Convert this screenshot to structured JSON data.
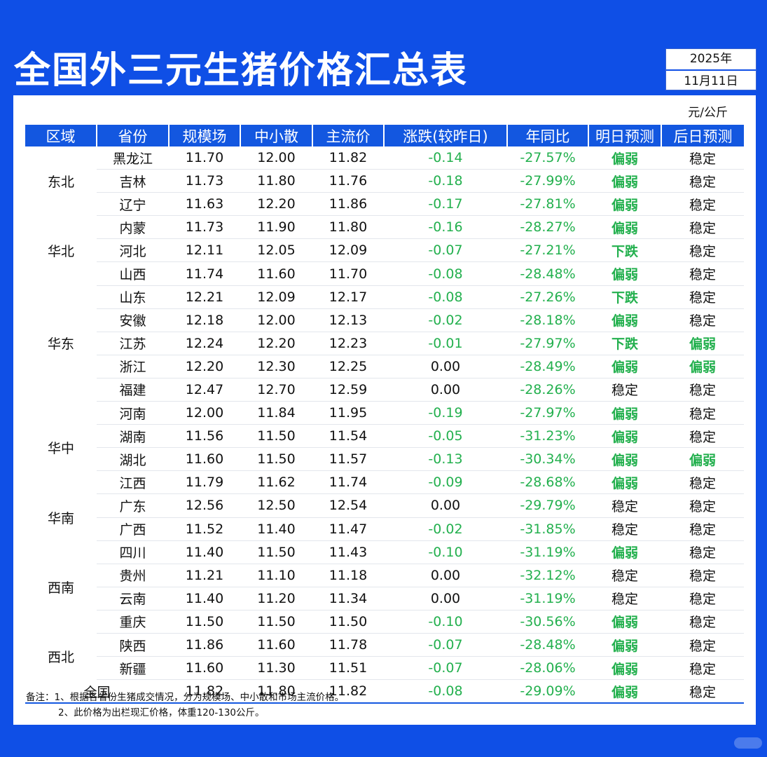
{
  "title": "全国外三元生猪价格汇总表",
  "date": {
    "year": "2025年",
    "day": "11月11日"
  },
  "unit": "元/公斤",
  "headers": [
    "区域",
    "省份",
    "规模场",
    "中小散",
    "主流价",
    "涨跌(较昨日)",
    "年同比",
    "明日预测",
    "后日预测"
  ],
  "regions": [
    {
      "name": "东北",
      "rows": 3
    },
    {
      "name": "华北",
      "rows": 3
    },
    {
      "name": "华东",
      "rows": 5
    },
    {
      "name": "华中",
      "rows": 4
    },
    {
      "name": "华南",
      "rows": 2
    },
    {
      "name": "西南",
      "rows": 4
    },
    {
      "name": "西北",
      "rows": 2
    }
  ],
  "rows": [
    [
      "黑龙江",
      "11.70",
      "12.00",
      "11.82",
      "-0.14",
      "-27.57%",
      "偏弱",
      "稳定"
    ],
    [
      "吉林",
      "11.73",
      "11.80",
      "11.76",
      "-0.18",
      "-27.99%",
      "偏弱",
      "稳定"
    ],
    [
      "辽宁",
      "11.63",
      "12.20",
      "11.86",
      "-0.17",
      "-27.81%",
      "偏弱",
      "稳定"
    ],
    [
      "内蒙",
      "11.73",
      "11.90",
      "11.80",
      "-0.16",
      "-28.27%",
      "偏弱",
      "稳定"
    ],
    [
      "河北",
      "12.11",
      "12.05",
      "12.09",
      "-0.07",
      "-27.21%",
      "下跌",
      "稳定"
    ],
    [
      "山西",
      "11.74",
      "11.60",
      "11.70",
      "-0.08",
      "-28.48%",
      "偏弱",
      "稳定"
    ],
    [
      "山东",
      "12.21",
      "12.09",
      "12.17",
      "-0.08",
      "-27.26%",
      "下跌",
      "稳定"
    ],
    [
      "安徽",
      "12.18",
      "12.00",
      "12.13",
      "-0.02",
      "-28.18%",
      "偏弱",
      "稳定"
    ],
    [
      "江苏",
      "12.24",
      "12.20",
      "12.23",
      "-0.01",
      "-27.97%",
      "下跌",
      "偏弱"
    ],
    [
      "浙江",
      "12.20",
      "12.30",
      "12.25",
      "0.00",
      "-28.49%",
      "偏弱",
      "偏弱"
    ],
    [
      "福建",
      "12.47",
      "12.70",
      "12.59",
      "0.00",
      "-28.26%",
      "稳定",
      "稳定"
    ],
    [
      "河南",
      "12.00",
      "11.84",
      "11.95",
      "-0.19",
      "-27.97%",
      "偏弱",
      "稳定"
    ],
    [
      "湖南",
      "11.56",
      "11.50",
      "11.54",
      "-0.05",
      "-31.23%",
      "偏弱",
      "稳定"
    ],
    [
      "湖北",
      "11.60",
      "11.50",
      "11.57",
      "-0.13",
      "-30.34%",
      "偏弱",
      "偏弱"
    ],
    [
      "江西",
      "11.79",
      "11.62",
      "11.74",
      "-0.09",
      "-28.68%",
      "偏弱",
      "稳定"
    ],
    [
      "广东",
      "12.56",
      "12.50",
      "12.54",
      "0.00",
      "-29.79%",
      "稳定",
      "稳定"
    ],
    [
      "广西",
      "11.52",
      "11.40",
      "11.47",
      "-0.02",
      "-31.85%",
      "稳定",
      "稳定"
    ],
    [
      "四川",
      "11.40",
      "11.50",
      "11.43",
      "-0.10",
      "-31.19%",
      "偏弱",
      "稳定"
    ],
    [
      "贵州",
      "11.21",
      "11.10",
      "11.18",
      "0.00",
      "-32.12%",
      "稳定",
      "稳定"
    ],
    [
      "云南",
      "11.40",
      "11.20",
      "11.34",
      "0.00",
      "-31.19%",
      "稳定",
      "稳定"
    ],
    [
      "重庆",
      "11.50",
      "11.50",
      "11.50",
      "-0.10",
      "-30.56%",
      "偏弱",
      "稳定"
    ],
    [
      "陕西",
      "11.86",
      "11.60",
      "11.78",
      "-0.07",
      "-28.48%",
      "偏弱",
      "稳定"
    ],
    [
      "新疆",
      "11.60",
      "11.30",
      "11.51",
      "-0.07",
      "-28.06%",
      "偏弱",
      "稳定"
    ]
  ],
  "total": [
    "全国",
    "11.82",
    "11.80",
    "11.82",
    "-0.08",
    "-29.09%",
    "偏弱",
    "稳定"
  ],
  "notes": {
    "line1": "备注：1、根据各省份生猪成交情况，分为规模场、中小散和市场主流价格。",
    "line2": "2、此价格为出栏现汇价格，体重120-130公斤。"
  },
  "colors": {
    "background": "#0f4fe6",
    "header": "#1357e0",
    "green": "#23b04e"
  }
}
